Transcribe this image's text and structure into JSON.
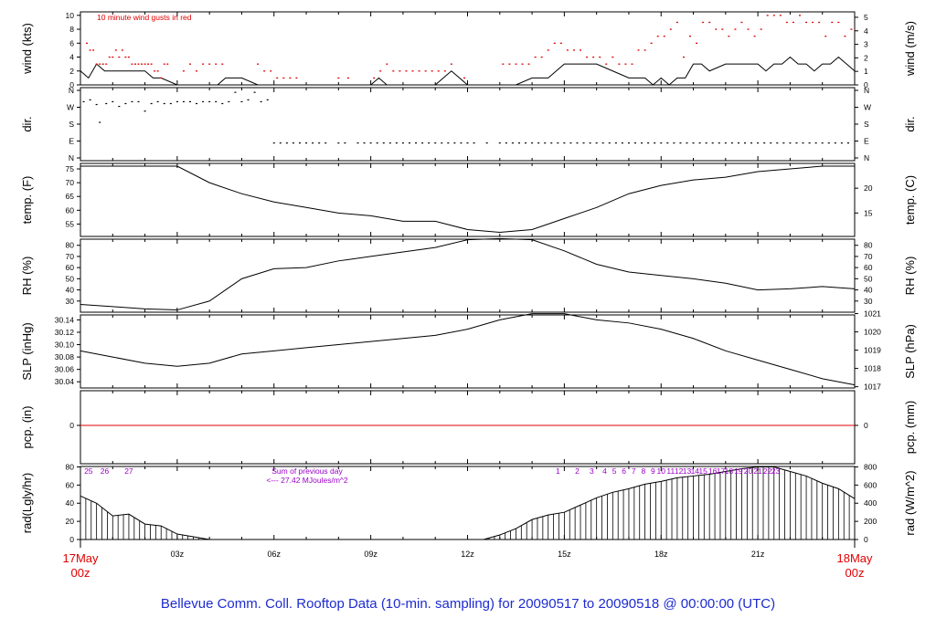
{
  "title": "Bellevue Comm. Coll. Rooftop Data (10-min. sampling) for 20090517  to  20090518 @ 00:00:00  (UTC)",
  "gust_note": "10  minute wind gusts in red",
  "rad_note_line1": "Sum of previous day",
  "rad_note_line2": "<--- 27.42 MJoules/m^2",
  "x_start": {
    "day": "17May",
    "time": "00z"
  },
  "x_end": {
    "day": "18May",
    "time": "00z"
  },
  "colors": {
    "red": "#e00000",
    "purple": "#9a00c8",
    "title": "#1d2bd0"
  },
  "chart_data": [
    {
      "type": "line",
      "panel": "wind",
      "ylabel_left": "wind (kts)",
      "ylabel_right": "wind (m/s)",
      "ylim": [
        0,
        10
      ],
      "yticks_left": [
        "0",
        "2",
        "4",
        "6",
        "8",
        "10"
      ],
      "yticks_right": [
        "0",
        "1",
        "2",
        "3",
        "4",
        "5"
      ],
      "x_hours": [
        0,
        0.25,
        0.5,
        0.75,
        1.0,
        1.25,
        1.5,
        1.75,
        2.0,
        2.25,
        2.5,
        3.0,
        3.25,
        3.5,
        4.0,
        4.25,
        4.5,
        5.0,
        5.5,
        6.0,
        7.0,
        8.0,
        9.0,
        9.25,
        9.5,
        10.0,
        10.5,
        11.0,
        11.25,
        11.5,
        12.0,
        12.5,
        13.0,
        13.5,
        14.0,
        14.5,
        15.0,
        15.25,
        15.5,
        15.75,
        16.0,
        16.5,
        17.0,
        17.25,
        17.5,
        17.75,
        18.0,
        18.25,
        18.5,
        18.75,
        19.0,
        19.25,
        19.5,
        20.0,
        20.5,
        21.0,
        21.25,
        21.5,
        21.75,
        22.0,
        22.25,
        22.5,
        22.75,
        23.0,
        23.25,
        23.5,
        23.75,
        24.0
      ],
      "series": [
        {
          "values": [
            2,
            1,
            3,
            2,
            2,
            2,
            2,
            2,
            2,
            1,
            1,
            0,
            0,
            0,
            0,
            0,
            1,
            1,
            0,
            0,
            0,
            0,
            0,
            1,
            0,
            0,
            0,
            0,
            1,
            2,
            0,
            0,
            0,
            0,
            1,
            1,
            3,
            3,
            3,
            3,
            3,
            2,
            1,
            1,
            1,
            0,
            1,
            0,
            1,
            1,
            3,
            3,
            2,
            3,
            3,
            3,
            2,
            3,
            3,
            4,
            3,
            3,
            2,
            3,
            3,
            4,
            3,
            2
          ]
        }
      ],
      "gust_hours": [
        0.2,
        0.3,
        0.4,
        0.5,
        0.6,
        0.7,
        0.8,
        0.9,
        1.0,
        1.1,
        1.2,
        1.3,
        1.4,
        1.5,
        1.6,
        1.7,
        1.8,
        1.9,
        2.0,
        2.1,
        2.2,
        2.3,
        2.4,
        2.5,
        2.6,
        2.7,
        3.2,
        3.4,
        3.6,
        3.8,
        4.0,
        4.2,
        4.4,
        5.5,
        5.7,
        5.9,
        6.1,
        6.3,
        6.5,
        6.7,
        8.0,
        8.3,
        9.1,
        9.3,
        9.5,
        9.7,
        9.9,
        10.1,
        10.3,
        10.5,
        10.7,
        10.9,
        11.1,
        11.3,
        11.5,
        11.9,
        13.1,
        13.3,
        13.5,
        13.7,
        13.9,
        14.1,
        14.3,
        14.5,
        14.7,
        14.9,
        15.1,
        15.3,
        15.5,
        15.7,
        15.9,
        16.1,
        16.3,
        16.5,
        16.7,
        16.9,
        17.1,
        17.3,
        17.5,
        17.7,
        17.9,
        18.1,
        18.3,
        18.5,
        18.7,
        18.9,
        19.1,
        19.3,
        19.5,
        19.7,
        19.9,
        20.1,
        20.3,
        20.5,
        20.7,
        20.9,
        21.1,
        21.3,
        21.5,
        21.7,
        21.9,
        22.1,
        22.3,
        22.5,
        22.7,
        22.9,
        23.1,
        23.3,
        23.5,
        23.7,
        23.9
      ],
      "gust_values": [
        6,
        5,
        5,
        3,
        3,
        3,
        3,
        4,
        4,
        5,
        4,
        5,
        4,
        4,
        3,
        3,
        3,
        3,
        3,
        3,
        3,
        2,
        2,
        1,
        3,
        3,
        2,
        3,
        2,
        3,
        3,
        3,
        3,
        3,
        2,
        2,
        1,
        1,
        1,
        1,
        1,
        1,
        1,
        2,
        3,
        2,
        2,
        2,
        2,
        2,
        2,
        2,
        2,
        2,
        3,
        1,
        3,
        3,
        3,
        3,
        3,
        4,
        4,
        5,
        6,
        6,
        5,
        5,
        5,
        4,
        4,
        4,
        3,
        4,
        3,
        3,
        3,
        5,
        5,
        6,
        7,
        7,
        8,
        9,
        4,
        7,
        6,
        9,
        9,
        8,
        8,
        7,
        8,
        9,
        8,
        7,
        8,
        10,
        10,
        10,
        9,
        9,
        10,
        9,
        9,
        9,
        7,
        9,
        9,
        7,
        8
      ]
    },
    {
      "type": "scatter",
      "panel": "dir.",
      "ylabel_left": "dir.",
      "ylabel_right": "dir.",
      "yticks_left": [
        "N",
        "W",
        "S",
        "E",
        "N"
      ],
      "yticks_right": [
        "N",
        "W",
        "S",
        "E",
        "N"
      ],
      "x_hours": [
        0.1,
        0.3,
        0.5,
        0.6,
        0.8,
        1.0,
        1.2,
        1.4,
        1.6,
        1.8,
        2.0,
        2.2,
        2.4,
        2.6,
        2.8,
        3.0,
        3.2,
        3.4,
        3.6,
        3.8,
        4.0,
        4.2,
        4.4,
        4.6,
        4.8,
        5.0,
        5.2,
        5.4,
        5.6,
        5.8,
        6.0,
        6.2,
        6.4,
        6.6,
        6.8,
        7.0,
        7.2,
        7.4,
        7.6,
        8.0,
        8.2,
        8.6,
        8.8,
        9.0,
        9.2,
        9.4,
        9.6,
        9.8,
        10.0,
        10.2,
        10.4,
        10.6,
        10.8,
        11.0,
        11.2,
        11.4,
        11.6,
        11.8,
        12.0,
        12.2,
        12.6,
        13.0,
        13.2,
        13.4,
        13.6,
        13.8,
        14.0,
        14.2,
        14.4,
        14.6,
        14.8,
        15.0,
        15.2,
        15.4,
        15.6,
        15.8,
        16.0,
        16.2,
        16.4,
        16.6,
        16.8,
        17.0,
        17.2,
        17.4,
        17.6,
        17.8,
        18.0,
        18.2,
        18.4,
        18.6,
        18.8,
        19.0,
        19.2,
        19.4,
        19.6,
        19.8,
        20.0,
        20.2,
        20.4,
        20.6,
        20.8,
        21.0,
        21.2,
        21.4,
        21.6,
        21.8,
        22.0,
        22.2,
        22.4,
        22.6,
        22.8,
        23.0,
        23.2,
        23.4,
        23.6,
        23.8
      ],
      "values": [
        300,
        310,
        285,
        190,
        290,
        300,
        275,
        290,
        300,
        300,
        250,
        290,
        300,
        290,
        290,
        300,
        300,
        300,
        290,
        300,
        300,
        300,
        290,
        300,
        350,
        300,
        310,
        350,
        300,
        310,
        80,
        80,
        80,
        80,
        80,
        80,
        80,
        80,
        80,
        80,
        80,
        80,
        80,
        80,
        80,
        80,
        80,
        80,
        80,
        80,
        80,
        80,
        80,
        80,
        80,
        80,
        80,
        80,
        80,
        80,
        80,
        80,
        80,
        80,
        80,
        80,
        80,
        80,
        80,
        80,
        80,
        80,
        80,
        80,
        80,
        80,
        80,
        80,
        80,
        80,
        80,
        80,
        80,
        80,
        80,
        80,
        80,
        80,
        80,
        80,
        80,
        80,
        80,
        80,
        80,
        80,
        80,
        80,
        80,
        80,
        80,
        80,
        80,
        80,
        80,
        80,
        80,
        80,
        80,
        80,
        80,
        80,
        80,
        80,
        80,
        80
      ]
    },
    {
      "type": "line",
      "panel": "temp",
      "ylabel_left": "temp. (F)",
      "ylabel_right": "temp. (C)",
      "ylim": [
        50,
        77
      ],
      "yticks_left": [
        "55",
        "60",
        "65",
        "70",
        "75"
      ],
      "yticks_right": [
        "15",
        "20"
      ],
      "x_hours": [
        0,
        1,
        2,
        3,
        4,
        5,
        6,
        7,
        8,
        9,
        10,
        11,
        12,
        13,
        14,
        15,
        16,
        17,
        18,
        19,
        20,
        21,
        22,
        23,
        24
      ],
      "series": [
        {
          "values": [
            76,
            76,
            76,
            76,
            70,
            66,
            63,
            61,
            59,
            58,
            56,
            56,
            53,
            52,
            53,
            57,
            61,
            66,
            69,
            71,
            72,
            74,
            75,
            76,
            76
          ]
        }
      ]
    },
    {
      "type": "line",
      "panel": "RH",
      "ylabel_left": "RH (%)",
      "ylabel_right": "RH (%)",
      "ylim": [
        20,
        85
      ],
      "yticks_left": [
        "30",
        "40",
        "50",
        "60",
        "70",
        "80"
      ],
      "yticks_right": [
        "30",
        "40",
        "50",
        "60",
        "70",
        "80"
      ],
      "x_hours": [
        0,
        1,
        2,
        3,
        4,
        5,
        6,
        7,
        8,
        9,
        10,
        11,
        12,
        13,
        14,
        15,
        16,
        17,
        18,
        19,
        20,
        21,
        22,
        23,
        24
      ],
      "series": [
        {
          "values": [
            27,
            25,
            23,
            22,
            30,
            50,
            59,
            60,
            66,
            70,
            74,
            78,
            85,
            86,
            85,
            75,
            63,
            56,
            53,
            50,
            46,
            40,
            41,
            43,
            41
          ]
        }
      ]
    },
    {
      "type": "line",
      "panel": "SLP",
      "ylabel_left": "SLP (inHg)",
      "ylabel_right": "SLP (hPa)",
      "ylim": [
        30.03,
        30.15
      ],
      "yticks_left": [
        "30.04",
        "30.06",
        "30.08",
        "30.10",
        "30.12",
        "30.14"
      ],
      "yticks_right": [
        "1017",
        "1018",
        "1019",
        "1020",
        "1021"
      ],
      "x_hours": [
        0,
        1,
        2,
        3,
        4,
        5,
        6,
        7,
        8,
        9,
        10,
        11,
        12,
        13,
        14,
        15,
        16,
        17,
        18,
        19,
        20,
        21,
        22,
        23,
        24
      ],
      "series": [
        {
          "values": [
            30.09,
            30.08,
            30.07,
            30.065,
            30.07,
            30.085,
            30.09,
            30.095,
            30.1,
            30.105,
            30.11,
            30.115,
            30.125,
            30.14,
            30.15,
            30.15,
            30.14,
            30.135,
            30.125,
            30.11,
            30.09,
            30.075,
            30.06,
            30.045,
            30.035
          ]
        }
      ]
    },
    {
      "type": "line",
      "panel": "pcp",
      "ylabel_left": "pcp. (in)",
      "ylabel_right": "pcp. (mm)",
      "yticks_left": [
        "0"
      ],
      "yticks_right": [
        "0"
      ],
      "x_hours": [
        0,
        24
      ],
      "series": [
        {
          "values": [
            0,
            0
          ]
        }
      ]
    },
    {
      "type": "area",
      "panel": "rad",
      "ylabel_left": "rad(Lgly/hr)",
      "ylabel_right": "rad (W/m^2)",
      "ylim": [
        0,
        80
      ],
      "yticks_left": [
        "0",
        "20",
        "40",
        "60",
        "80"
      ],
      "yticks_right": [
        "0",
        "200",
        "400",
        "600",
        "800"
      ],
      "x_hours": [
        0,
        0.5,
        1.0,
        1.5,
        2.0,
        2.5,
        3.0,
        3.5,
        4.0,
        12.5,
        13.0,
        13.5,
        14.0,
        14.5,
        15.0,
        15.5,
        16.0,
        16.5,
        17.0,
        17.5,
        18.0,
        18.5,
        19.0,
        19.5,
        20.0,
        20.5,
        21.0,
        21.5,
        22.0,
        22.5,
        23.0,
        23.5,
        24.0
      ],
      "series": [
        {
          "values": [
            48,
            40,
            26,
            28,
            17,
            15,
            6,
            3,
            0,
            0,
            5,
            12,
            22,
            27,
            30,
            38,
            46,
            52,
            56,
            61,
            64,
            68,
            70,
            72,
            75,
            78,
            80,
            80,
            75,
            70,
            62,
            56,
            45
          ]
        }
      ],
      "hour_labels": [
        "25",
        "26",
        "27",
        "1",
        "2",
        "3",
        "4",
        "5",
        "6",
        "7",
        "8",
        "9",
        "10",
        "11",
        "12",
        "13",
        "14",
        "15",
        "16",
        "17",
        "18",
        "19",
        "20",
        "21",
        "22",
        "23"
      ],
      "hour_label_positions": [
        0.25,
        0.75,
        1.5,
        14.8,
        15.4,
        15.85,
        16.25,
        16.55,
        16.85,
        17.15,
        17.45,
        17.75,
        18.0,
        18.3,
        18.55,
        18.8,
        19.05,
        19.3,
        19.6,
        19.85,
        20.1,
        20.4,
        20.7,
        21.0,
        21.3,
        21.55
      ]
    }
  ],
  "x_ticks": [
    "03z",
    "06z",
    "09z",
    "12z",
    "15z",
    "18z",
    "21z"
  ]
}
